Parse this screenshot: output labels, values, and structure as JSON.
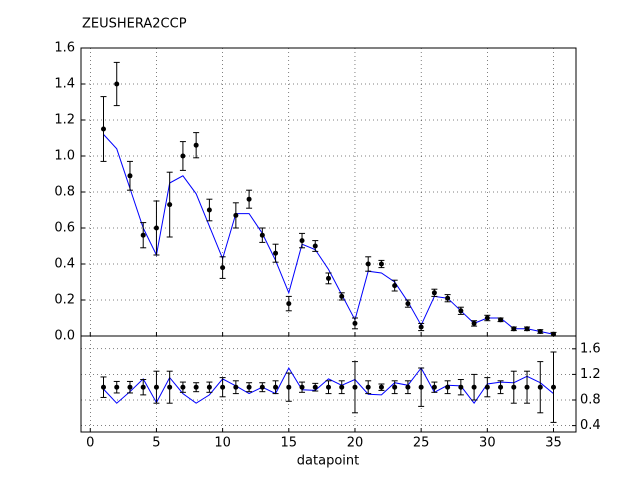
{
  "chart_data": [
    {
      "type": "errorbar",
      "title": "ZEUSHERA2CCP",
      "x": [
        1,
        2,
        3,
        4,
        5,
        6,
        7,
        8,
        9,
        10,
        11,
        12,
        13,
        14,
        15,
        16,
        17,
        18,
        19,
        20,
        21,
        22,
        23,
        24,
        25,
        26,
        27,
        28,
        29,
        30,
        31,
        32,
        33,
        34,
        35
      ],
      "values": [
        1.15,
        1.4,
        0.89,
        0.56,
        0.6,
        0.73,
        1.0,
        1.06,
        0.7,
        0.38,
        0.67,
        0.76,
        0.56,
        0.46,
        0.18,
        0.53,
        0.5,
        0.32,
        0.22,
        0.07,
        0.4,
        0.4,
        0.28,
        0.18,
        0.05,
        0.24,
        0.21,
        0.14,
        0.07,
        0.1,
        0.09,
        0.04,
        0.04,
        0.025,
        0.01
      ],
      "errors": [
        0.18,
        0.12,
        0.08,
        0.07,
        0.15,
        0.18,
        0.08,
        0.07,
        0.06,
        0.06,
        0.07,
        0.05,
        0.04,
        0.05,
        0.04,
        0.04,
        0.03,
        0.03,
        0.02,
        0.03,
        0.04,
        0.02,
        0.03,
        0.02,
        0.02,
        0.02,
        0.02,
        0.02,
        0.015,
        0.015,
        0.01,
        0.01,
        0.01,
        0.01,
        0.01
      ],
      "model": [
        1.12,
        1.04,
        0.82,
        0.6,
        0.45,
        0.85,
        0.89,
        0.79,
        0.61,
        0.43,
        0.68,
        0.68,
        0.57,
        0.42,
        0.24,
        0.51,
        0.48,
        0.37,
        0.23,
        0.09,
        0.36,
        0.35,
        0.3,
        0.19,
        0.06,
        0.22,
        0.21,
        0.14,
        0.07,
        0.1,
        0.1,
        0.04,
        0.04,
        0.025,
        0.01
      ],
      "color": "#0000ff",
      "marker_color": "#000000",
      "xlim": [
        -0.7,
        36.7
      ],
      "ylim": [
        0,
        1.6
      ],
      "yticks": [
        {
          "value": 0,
          "label": "0.0"
        },
        {
          "value": 0.2,
          "label": "0.2"
        },
        {
          "value": 0.4,
          "label": "0.4"
        },
        {
          "value": 0.6,
          "label": "0.6"
        },
        {
          "value": 0.8,
          "label": "0.8"
        },
        {
          "value": 1,
          "label": "1.0"
        },
        {
          "value": 1.2,
          "label": "1.2"
        },
        {
          "value": 1.4,
          "label": "1.4"
        },
        {
          "value": 1.6,
          "label": "1.6"
        }
      ],
      "grid": true
    },
    {
      "type": "errorbar",
      "x_label": "datapoint",
      "x": [
        1,
        2,
        3,
        4,
        5,
        6,
        7,
        8,
        9,
        10,
        11,
        12,
        13,
        14,
        15,
        16,
        17,
        18,
        19,
        20,
        21,
        22,
        23,
        24,
        25,
        26,
        27,
        28,
        29,
        30,
        31,
        32,
        33,
        34,
        35
      ],
      "values": [
        1,
        1,
        1,
        1,
        1,
        1,
        1,
        1,
        1,
        1,
        1,
        1,
        1,
        1,
        1,
        1,
        1,
        1,
        1,
        1,
        1,
        1,
        1,
        1,
        1,
        1,
        1,
        1,
        1,
        1,
        1,
        1,
        1,
        1,
        1
      ],
      "errors": [
        0.16,
        0.09,
        0.09,
        0.12,
        0.25,
        0.25,
        0.08,
        0.07,
        0.08,
        0.15,
        0.1,
        0.07,
        0.07,
        0.1,
        0.22,
        0.08,
        0.06,
        0.1,
        0.1,
        0.4,
        0.1,
        0.05,
        0.1,
        0.1,
        0.3,
        0.08,
        0.1,
        0.12,
        0.2,
        0.15,
        0.1,
        0.25,
        0.25,
        0.4,
        0.55
      ],
      "model": [
        0.97,
        0.75,
        0.93,
        1.13,
        0.76,
        1.15,
        0.9,
        0.75,
        0.88,
        1.13,
        1.02,
        0.9,
        1.0,
        0.9,
        1.3,
        0.96,
        0.95,
        1.13,
        1.03,
        1.12,
        0.89,
        0.88,
        1.07,
        1.03,
        1.3,
        0.92,
        1.03,
        1.02,
        0.75,
        1.05,
        1.08,
        1.07,
        1.17,
        1.07,
        0.9
      ],
      "color": "#0000ff",
      "marker_color": "#000000",
      "xlim": [
        -0.7,
        36.7
      ],
      "ylim": [
        0.3,
        1.8
      ],
      "xticks": [
        0,
        5,
        10,
        15,
        20,
        25,
        30,
        35
      ],
      "yticks": [
        0.4,
        0.8,
        1.2,
        1.6
      ],
      "grid": true
    }
  ]
}
